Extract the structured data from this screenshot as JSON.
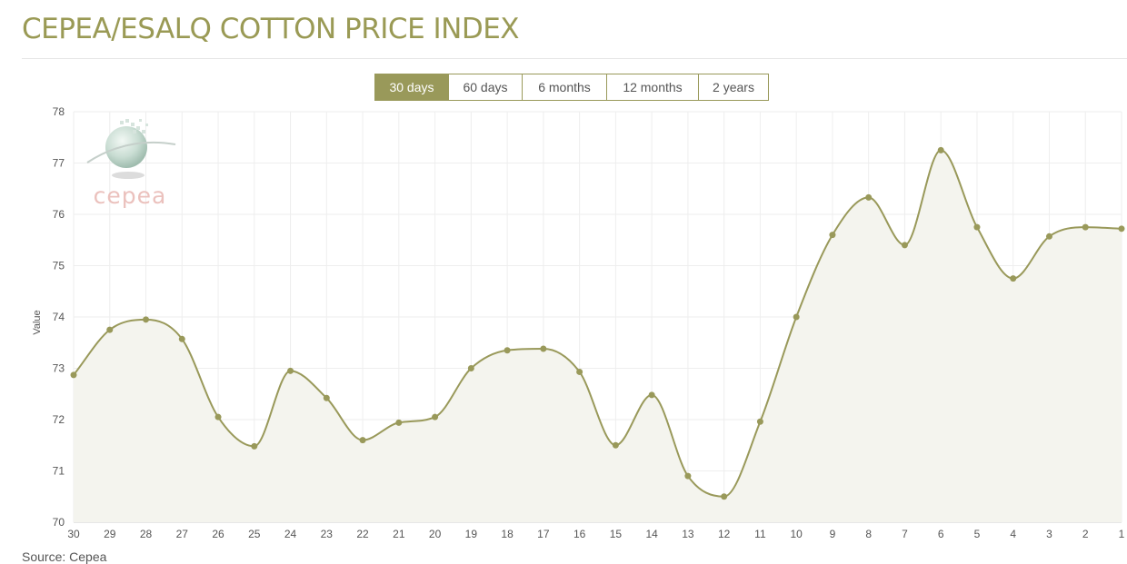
{
  "page": {
    "title": "CEPEA/ESALQ COTTON PRICE INDEX",
    "source": "Source: Cepea"
  },
  "range_buttons": [
    {
      "label": "30 days",
      "active": true
    },
    {
      "label": "60 days",
      "active": false
    },
    {
      "label": "6 months",
      "active": false
    },
    {
      "label": "12 months",
      "active": false
    },
    {
      "label": "2 years",
      "active": false
    }
  ],
  "watermark": {
    "text": "cepea",
    "icon": "cepea-globe-logo"
  },
  "colors": {
    "accent": "#99995a",
    "line": "#99995a",
    "area": "#f4f4ee",
    "watermark_text": "#e9b9b5",
    "grid": "#eeeeee"
  },
  "chart_data": {
    "type": "line",
    "title": "",
    "xlabel": "",
    "ylabel": "Value",
    "ylim": [
      70,
      78
    ],
    "yticks": [
      70,
      71,
      72,
      73,
      74,
      75,
      76,
      77,
      78
    ],
    "grid": true,
    "legend": "none",
    "categories": [
      "30",
      "29",
      "28",
      "27",
      "26",
      "25",
      "24",
      "23",
      "22",
      "21",
      "20",
      "19",
      "18",
      "17",
      "16",
      "15",
      "14",
      "13",
      "12",
      "11",
      "10",
      "9",
      "8",
      "7",
      "6",
      "5",
      "4",
      "3",
      "2",
      "1"
    ],
    "series": [
      {
        "values": [
          72.87,
          73.75,
          73.95,
          73.57,
          72.05,
          71.48,
          72.95,
          72.42,
          71.6,
          71.94,
          72.05,
          73.0,
          73.35,
          73.38,
          72.93,
          71.5,
          72.48,
          70.9,
          70.5,
          71.96,
          74.0,
          75.6,
          76.33,
          75.4,
          77.25,
          75.75,
          74.75,
          75.57,
          75.75,
          75.72
        ]
      }
    ]
  }
}
